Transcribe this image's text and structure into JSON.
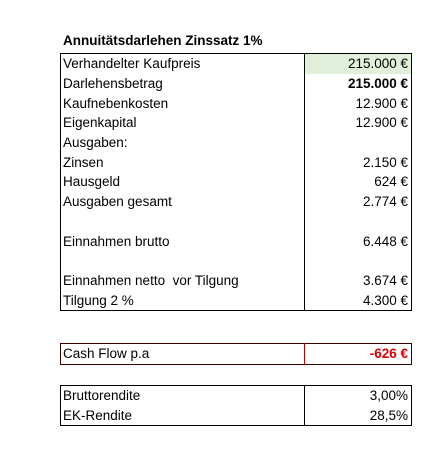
{
  "title": "Annuitätsdarlehen Zinssatz 1%",
  "table": {
    "groups": [
      [
        {
          "label": "Verhandelter Kaufpreis",
          "value": "215.000 €"
        },
        {
          "label": "Darlehensbetrag",
          "value": "215.000 €"
        },
        {
          "label": "Kaufnebenkosten",
          "value": "12.900 €"
        },
        {
          "label": "Eigenkapital",
          "value": "12.900 €"
        },
        {
          "label": "Ausgaben:"
        },
        {
          "label": "Zinsen",
          "value": "2.150 €"
        },
        {
          "label": "Hausgeld",
          "value": "624 €"
        },
        {
          "label": "Ausgaben gesamt",
          "value": "2.774 €"
        }
      ],
      [
        {
          "label": "Einnahmen brutto",
          "value": "6.448 €"
        }
      ],
      [
        {
          "label": "Einnahmen netto  vor Tilgung",
          "value": "3.674 €"
        },
        {
          "label": "Tilgung 2 %",
          "value": "4.300 €"
        }
      ]
    ]
  },
  "cash_flow": {
    "label": "Cash Flow p.a",
    "value": "-626 €"
  },
  "returns": [
    {
      "label": "Bruttorendite",
      "value": "3,00%"
    },
    {
      "label": "EK-Rendite",
      "value": "28,5%"
    }
  ]
}
